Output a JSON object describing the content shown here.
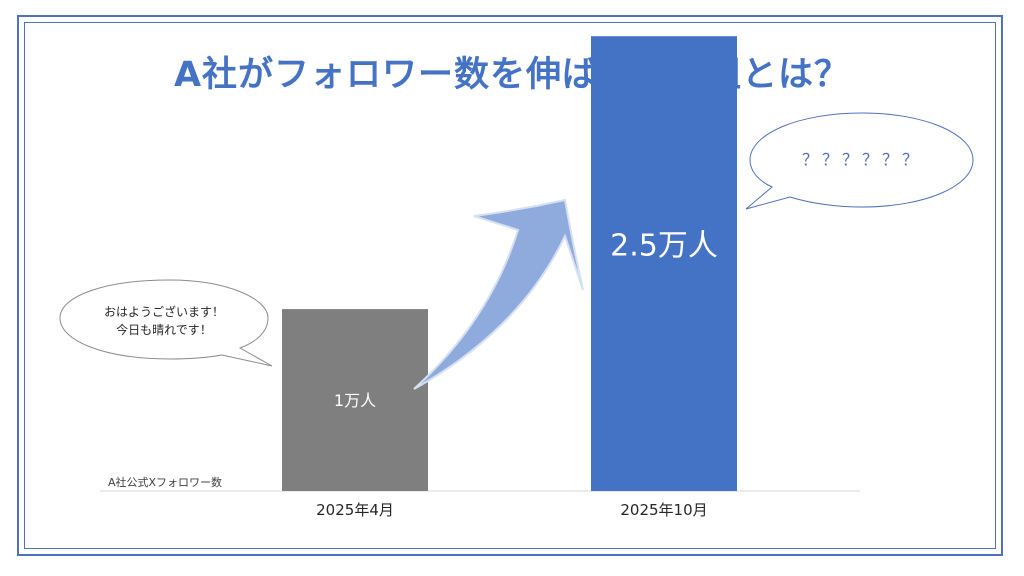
{
  "title": "A社がフォロワー数を伸ばした取組とは？",
  "chart_data": {
    "type": "bar",
    "ylabel": "A社公式Xフォロワー数",
    "categories": [
      "2025年4月",
      "2025年10月"
    ],
    "values": [
      1,
      2.5
    ],
    "data_labels": [
      "1万人",
      "2.5万人"
    ],
    "unit": "万人",
    "ylim": [
      0,
      2.6
    ],
    "grid": false,
    "legend": false,
    "colors": [
      "#7f7f7f",
      "#4472c4"
    ]
  },
  "bubbles": {
    "left": [
      "おはようございます！",
      "今日も晴れです！"
    ],
    "right": "？？？？？？"
  },
  "colors": {
    "accent": "#4472c4",
    "frame": "#4f71be",
    "arrow": "#8faadc"
  }
}
